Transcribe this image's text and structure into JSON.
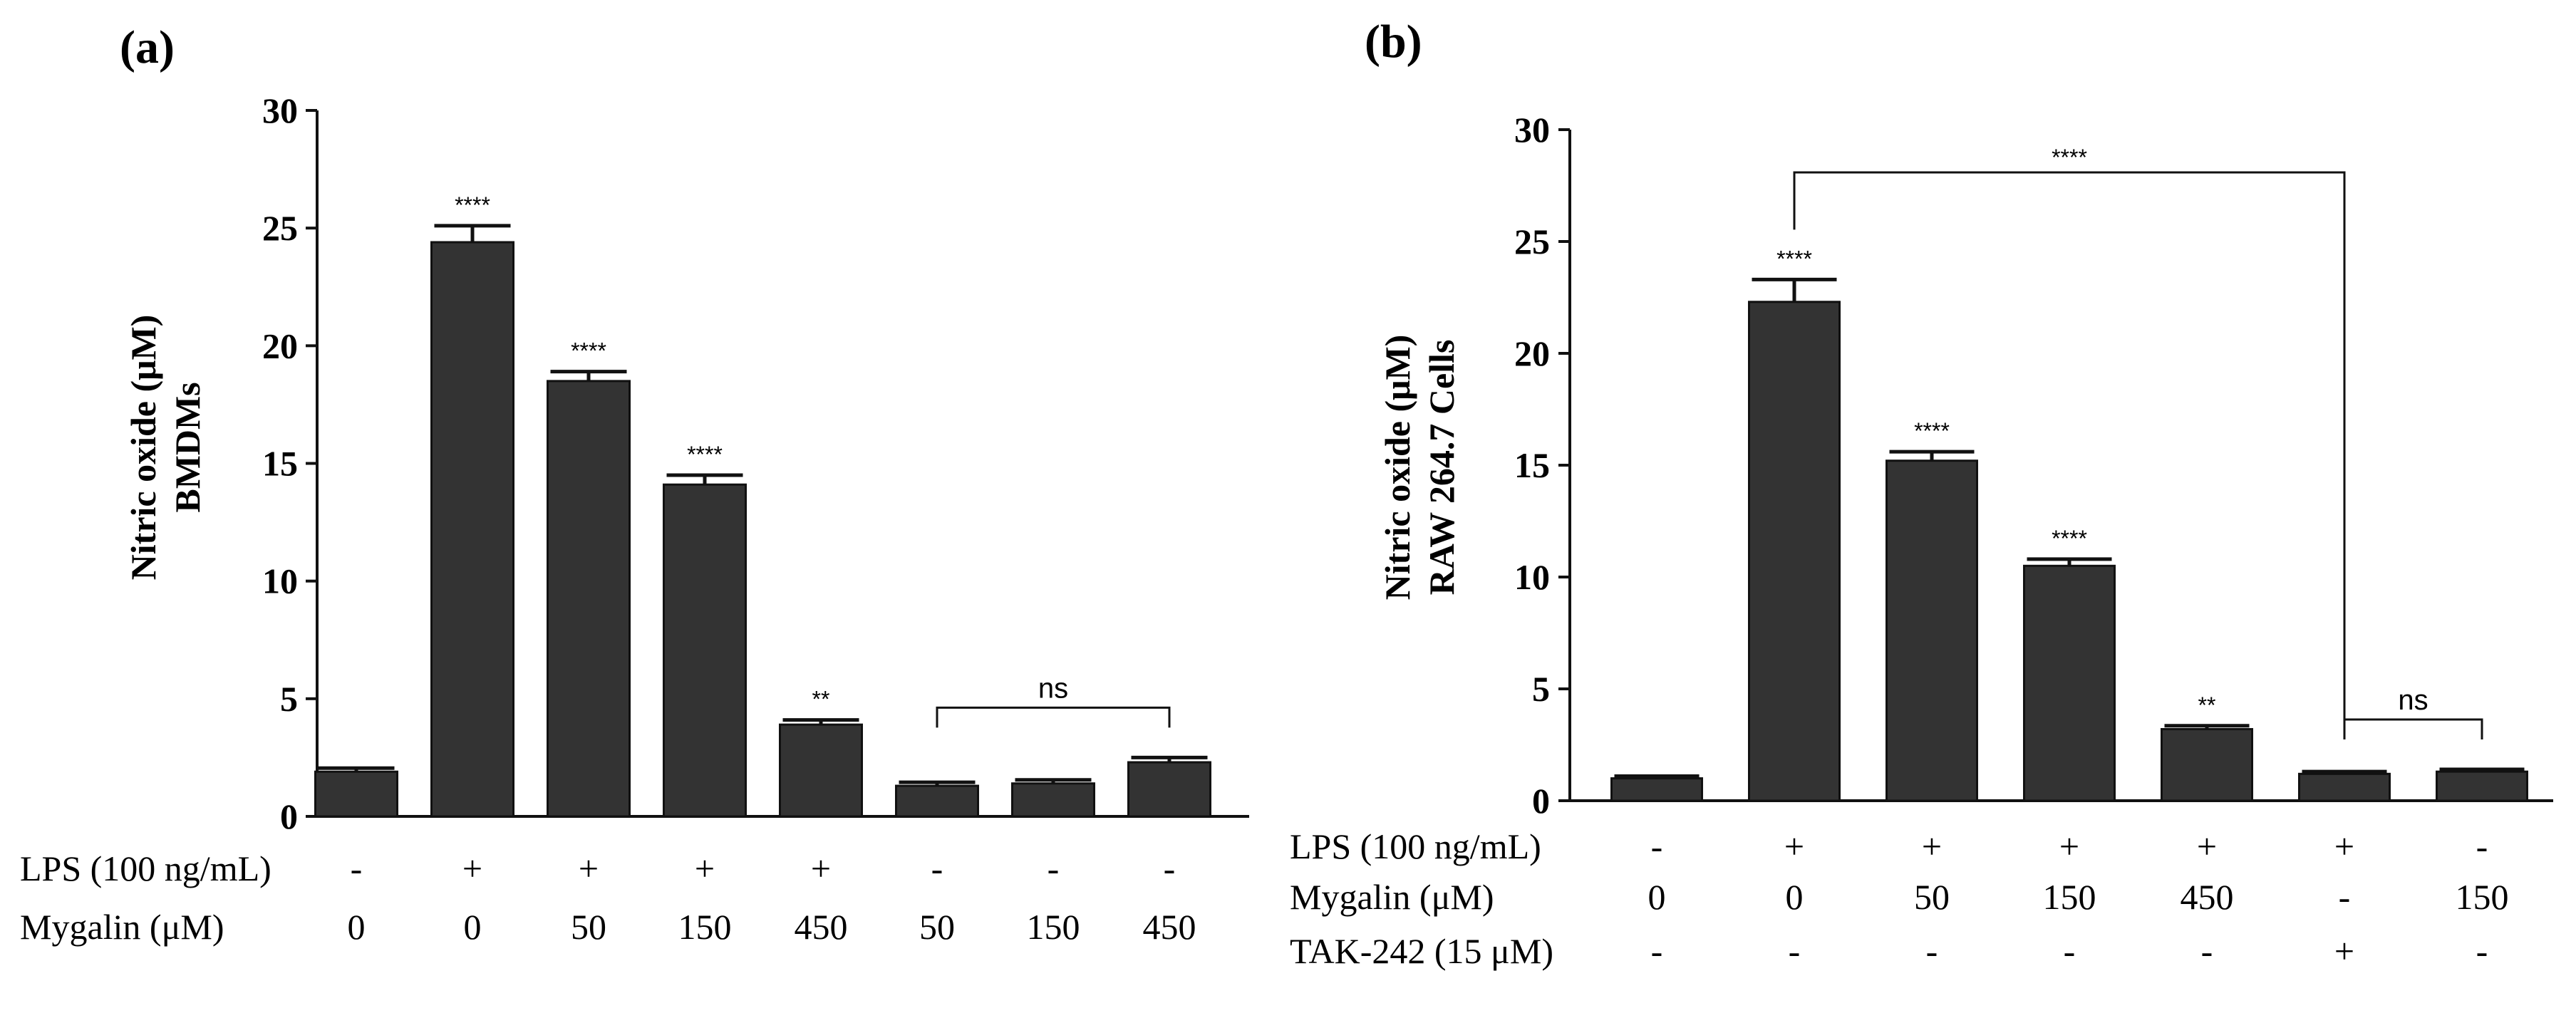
{
  "chart_data": [
    {
      "panel": "(a)",
      "type": "bar",
      "ylabel_line1": "Nitric oxide (μM)",
      "ylabel_line2": "BMDMs",
      "ylim": [
        0,
        30
      ],
      "yticks": [
        0,
        5,
        10,
        15,
        20,
        25,
        30
      ],
      "values": [
        1.9,
        24.4,
        18.5,
        14.1,
        3.9,
        1.3,
        1.4,
        2.3
      ],
      "errors": [
        0.15,
        0.7,
        0.4,
        0.4,
        0.2,
        0.15,
        0.15,
        0.2
      ],
      "significance": [
        "",
        "****",
        "****",
        "****",
        "**",
        "",
        "",
        ""
      ],
      "brackets": [
        {
          "from": 5,
          "to": 7,
          "label": "ns"
        }
      ],
      "condition_rows": [
        {
          "label": "LPS (100 ng/mL)",
          "values": [
            "-",
            "+",
            "+",
            "+",
            "+",
            "-",
            "-",
            "-"
          ]
        },
        {
          "label": "Mygalin (μM)",
          "values": [
            "0",
            "0",
            "50",
            "150",
            "450",
            "50",
            "150",
            "450"
          ]
        }
      ],
      "bar_color": "#333333"
    },
    {
      "panel": "(b)",
      "type": "bar",
      "ylabel_line1": "Nitric oxide (μM)",
      "ylabel_line2": "RAW 264.7 Cells",
      "ylim": [
        0,
        30
      ],
      "yticks": [
        0,
        5,
        10,
        15,
        20,
        25,
        30
      ],
      "values": [
        1.0,
        22.3,
        15.2,
        10.5,
        3.2,
        1.2,
        1.3
      ],
      "errors": [
        0.1,
        1.0,
        0.4,
        0.3,
        0.15,
        0.1,
        0.1
      ],
      "significance": [
        "",
        "****",
        "****",
        "****",
        "**",
        "",
        ""
      ],
      "brackets": [
        {
          "from": 1,
          "to": 5,
          "label": "****",
          "level": 30
        },
        {
          "from": 5,
          "to": 6,
          "label": "ns"
        }
      ],
      "condition_rows": [
        {
          "label": "LPS (100 ng/mL)",
          "values": [
            "-",
            "+",
            "+",
            "+",
            "+",
            "+",
            "-"
          ]
        },
        {
          "label": "Mygalin (μM)",
          "values": [
            "0",
            "0",
            "50",
            "150",
            "450",
            "-",
            "150"
          ]
        },
        {
          "label": "TAK-242 (15 μM)",
          "values": [
            "-",
            "-",
            "-",
            "-",
            "-",
            "+",
            "-"
          ]
        }
      ],
      "bar_color": "#333333"
    }
  ]
}
